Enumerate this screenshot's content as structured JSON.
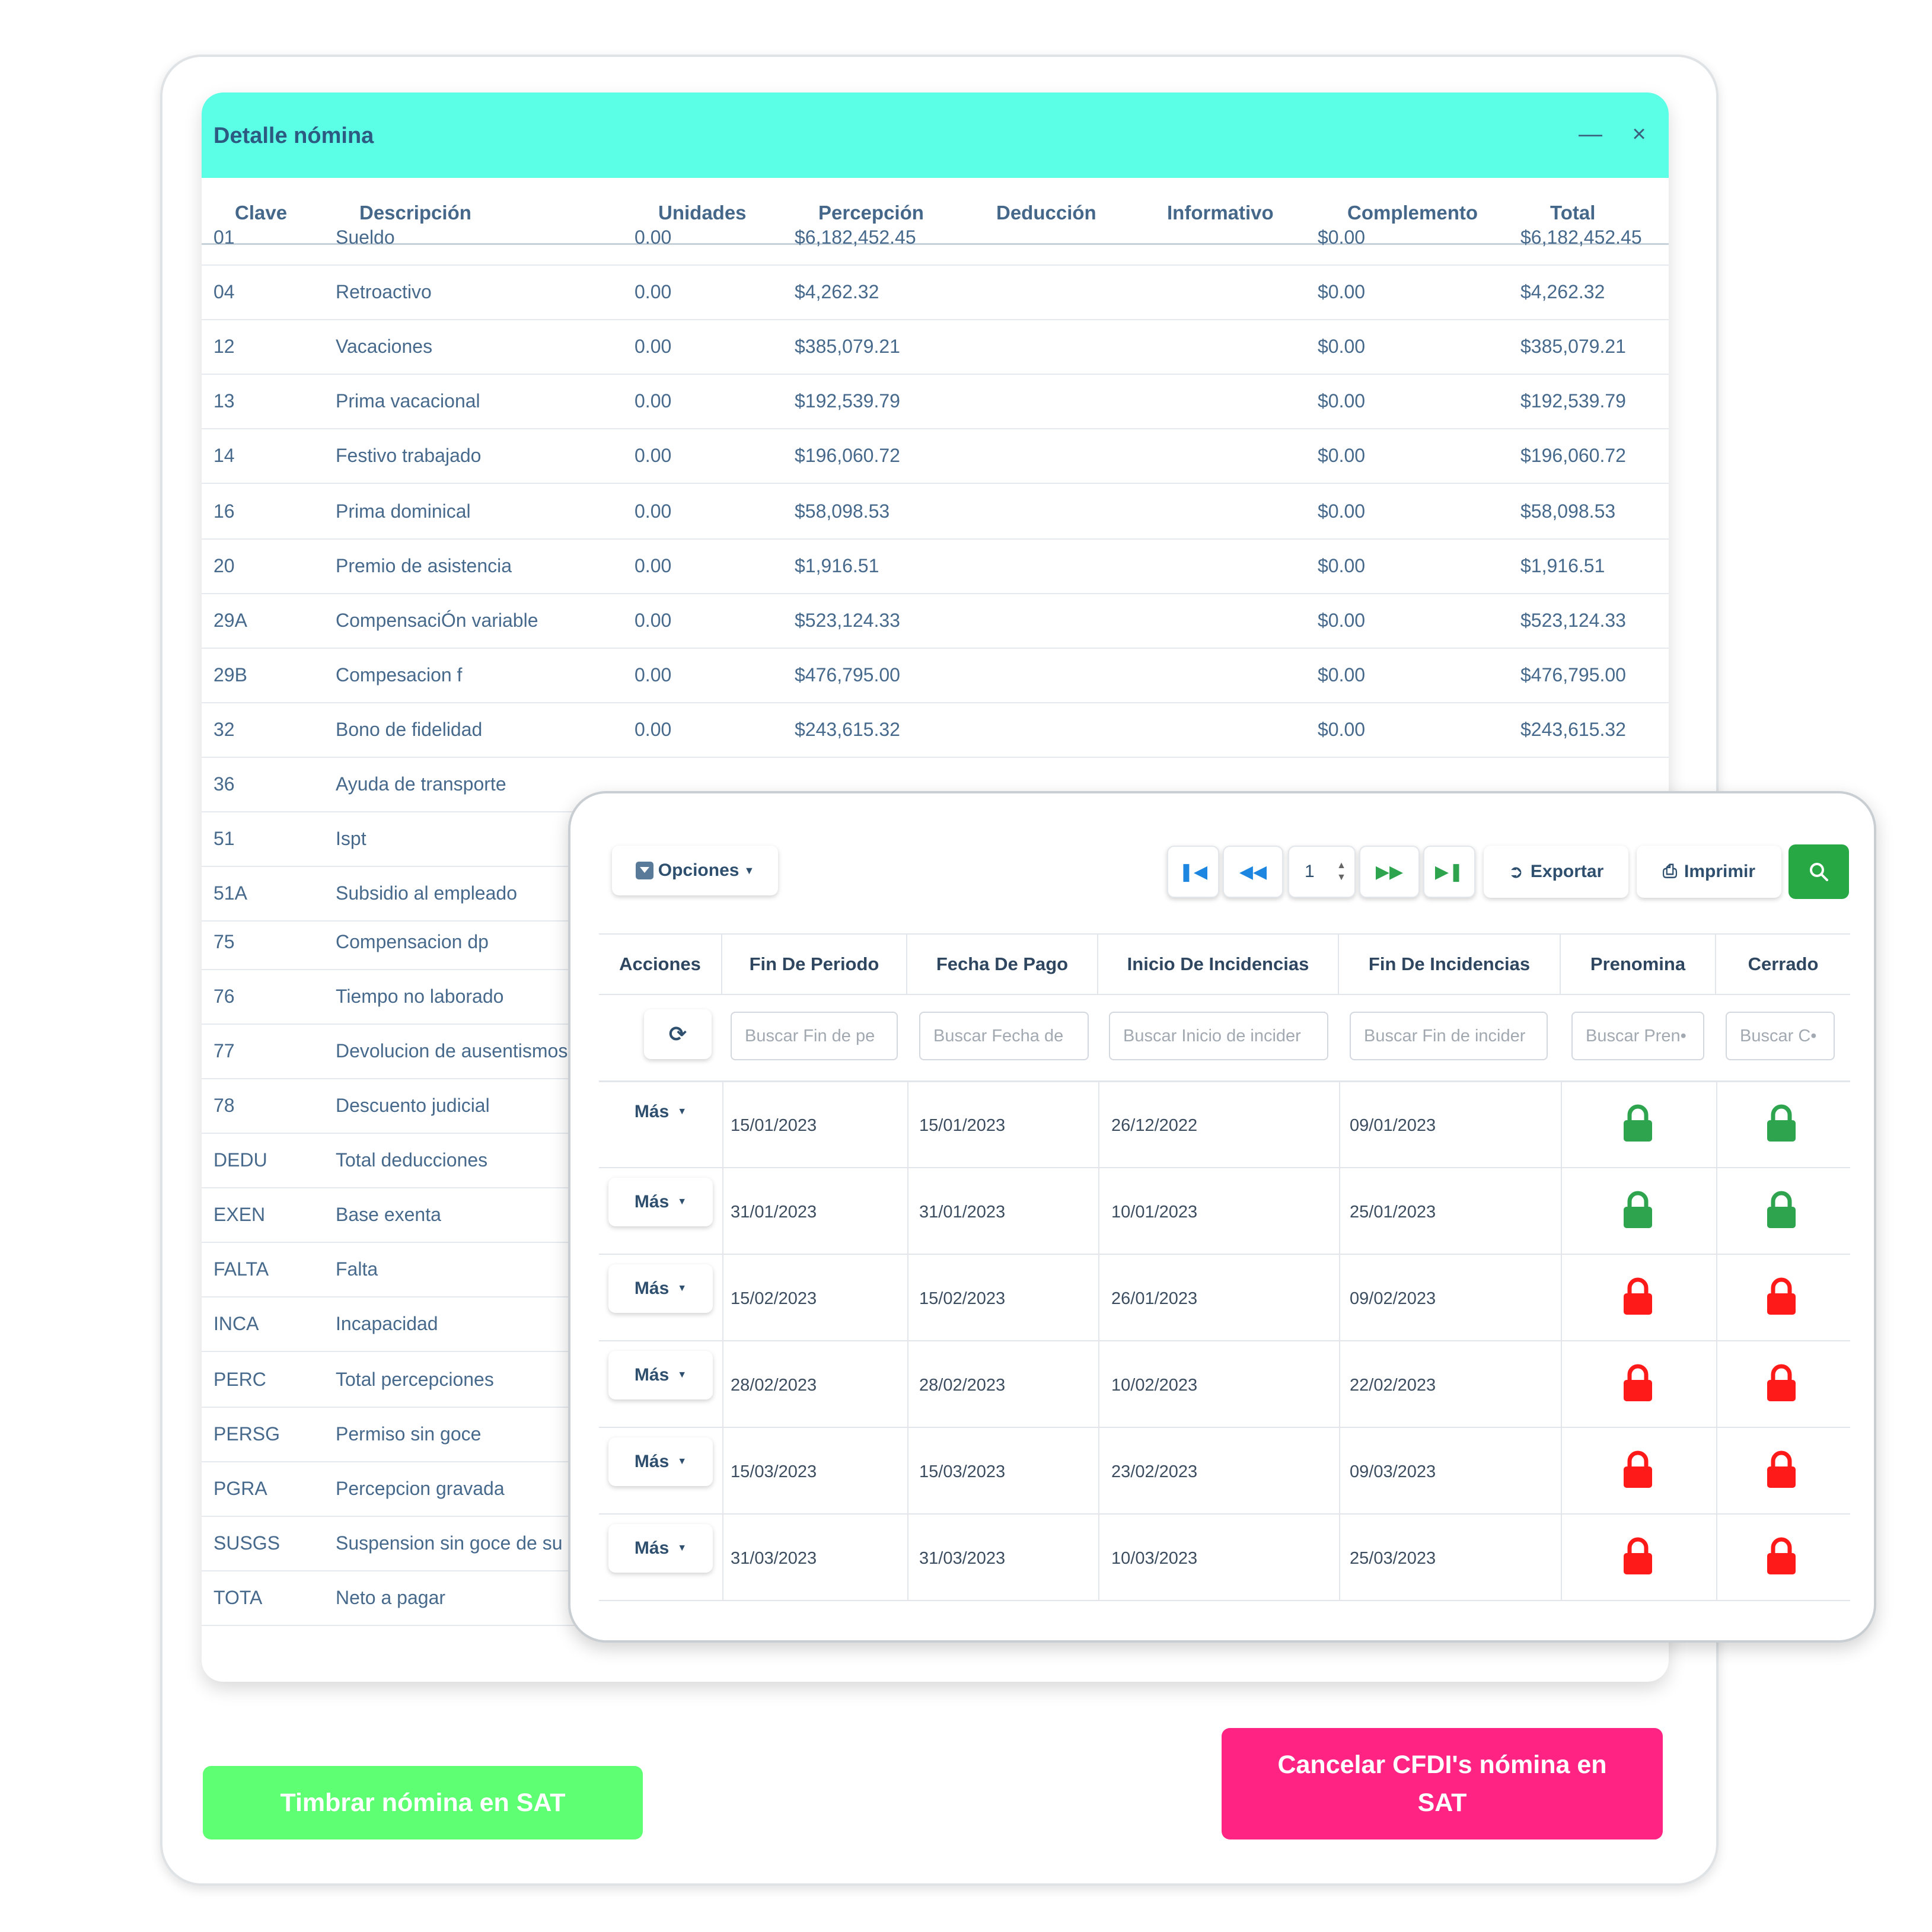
{
  "detail": {
    "title": "Detalle nómina",
    "minimize_icon": "minimize-icon",
    "close_icon": "close-icon",
    "columns": [
      "Clave",
      "Descripción",
      "Unidades",
      "Percepción",
      "Deducción",
      "Informativo",
      "Complemento",
      "Total"
    ],
    "rows": [
      {
        "clave": "01",
        "descripcion": "Sueldo",
        "unidades": "0.00",
        "percepcion": "$6,182,452.45",
        "complemento": "$0.00",
        "total": "$6,182,452.45"
      },
      {
        "clave": "04",
        "descripcion": "Retroactivo",
        "unidades": "0.00",
        "percepcion": "$4,262.32",
        "complemento": "$0.00",
        "total": "$4,262.32"
      },
      {
        "clave": "12",
        "descripcion": "Vacaciones",
        "unidades": "0.00",
        "percepcion": "$385,079.21",
        "complemento": "$0.00",
        "total": "$385,079.21"
      },
      {
        "clave": "13",
        "descripcion": "Prima vacacional",
        "unidades": "0.00",
        "percepcion": "$192,539.79",
        "complemento": "$0.00",
        "total": "$192,539.79"
      },
      {
        "clave": "14",
        "descripcion": "Festivo trabajado",
        "unidades": "0.00",
        "percepcion": "$196,060.72",
        "complemento": "$0.00",
        "total": "$196,060.72"
      },
      {
        "clave": "16",
        "descripcion": "Prima dominical",
        "unidades": "0.00",
        "percepcion": "$58,098.53",
        "complemento": "$0.00",
        "total": "$58,098.53"
      },
      {
        "clave": "20",
        "descripcion": "Premio de asistencia",
        "unidades": "0.00",
        "percepcion": "$1,916.51",
        "complemento": "$0.00",
        "total": "$1,916.51"
      },
      {
        "clave": "29A",
        "descripcion": "CompensaciÓn variable",
        "unidades": "0.00",
        "percepcion": "$523,124.33",
        "complemento": "$0.00",
        "total": "$523,124.33"
      },
      {
        "clave": "29B",
        "descripcion": "Compesacion f",
        "unidades": "0.00",
        "percepcion": "$476,795.00",
        "complemento": "$0.00",
        "total": "$476,795.00"
      },
      {
        "clave": "32",
        "descripcion": "Bono de fidelidad",
        "unidades": "0.00",
        "percepcion": "$243,615.32",
        "complemento": "$0.00",
        "total": "$243,615.32"
      },
      {
        "clave": "36",
        "descripcion": "Ayuda de transporte"
      },
      {
        "clave": "51",
        "descripcion": "Ispt"
      },
      {
        "clave": "51A",
        "descripcion": "Subsidio al empleado"
      },
      {
        "clave": "75",
        "descripcion": "Compensacion dp"
      },
      {
        "clave": "76",
        "descripcion": "Tiempo no laborado"
      },
      {
        "clave": "77",
        "descripcion": "Devolucion de ausentismos"
      },
      {
        "clave": "78",
        "descripcion": "Descuento judicial"
      },
      {
        "clave": "DEDU",
        "descripcion": "Total deducciones"
      },
      {
        "clave": "EXEN",
        "descripcion": "Base exenta"
      },
      {
        "clave": "FALTA",
        "descripcion": "Falta"
      },
      {
        "clave": "INCA",
        "descripcion": "Incapacidad"
      },
      {
        "clave": "PERC",
        "descripcion": "Total percepciones"
      },
      {
        "clave": "PERSG",
        "descripcion": "Permiso sin goce"
      },
      {
        "clave": "PGRA",
        "descripcion": "Percepcion gravada"
      },
      {
        "clave": "SUSGS",
        "descripcion": "Suspension sin goce de su"
      },
      {
        "clave": "TOTA",
        "descripcion": "Neto a pagar"
      }
    ]
  },
  "overlay": {
    "options_label": "Opciones",
    "page_value": "1",
    "export_label": "Exportar",
    "print_label": "Imprimir",
    "columns": [
      "Acciones",
      "Fin De Periodo",
      "Fecha De Pago",
      "Inicio De Incidencias",
      "Fin De Incidencias",
      "Prenomina",
      "Cerrado"
    ],
    "filters": [
      "Buscar Fin de pe",
      "Buscar Fecha de",
      "Buscar Inicio de incider",
      "Buscar Fin de incider",
      "Buscar Pren•",
      "Buscar C•"
    ],
    "more_label": "Más",
    "rows": [
      {
        "fin_periodo": "15/01/2023",
        "fecha_pago": "15/01/2023",
        "inicio_inc": "26/12/2022",
        "fin_inc": "09/01/2023",
        "prenomina": "locked-green",
        "cerrado": "locked-green"
      },
      {
        "fin_periodo": "31/01/2023",
        "fecha_pago": "31/01/2023",
        "inicio_inc": "10/01/2023",
        "fin_inc": "25/01/2023",
        "prenomina": "locked-green",
        "cerrado": "locked-green"
      },
      {
        "fin_periodo": "15/02/2023",
        "fecha_pago": "15/02/2023",
        "inicio_inc": "26/01/2023",
        "fin_inc": "09/02/2023",
        "prenomina": "locked-red",
        "cerrado": "locked-red"
      },
      {
        "fin_periodo": "28/02/2023",
        "fecha_pago": "28/02/2023",
        "inicio_inc": "10/02/2023",
        "fin_inc": "22/02/2023",
        "prenomina": "locked-red",
        "cerrado": "locked-red"
      },
      {
        "fin_periodo": "15/03/2023",
        "fecha_pago": "15/03/2023",
        "inicio_inc": "23/02/2023",
        "fin_inc": "09/03/2023",
        "prenomina": "locked-red",
        "cerrado": "locked-red"
      },
      {
        "fin_periodo": "31/03/2023",
        "fecha_pago": "31/03/2023",
        "inicio_inc": "10/03/2023",
        "fin_inc": "25/03/2023",
        "prenomina": "locked-red",
        "cerrado": "locked-red"
      }
    ],
    "colors": {
      "green": "#2ea44f",
      "red": "#ff1a1a",
      "search_btn": "#28a745",
      "accent": "#1c86e0"
    }
  },
  "actions": {
    "timbrar_label": "Timbrar nómina en SAT",
    "cancelar_label": "Cancelar CFDI's nómina en SAT"
  }
}
